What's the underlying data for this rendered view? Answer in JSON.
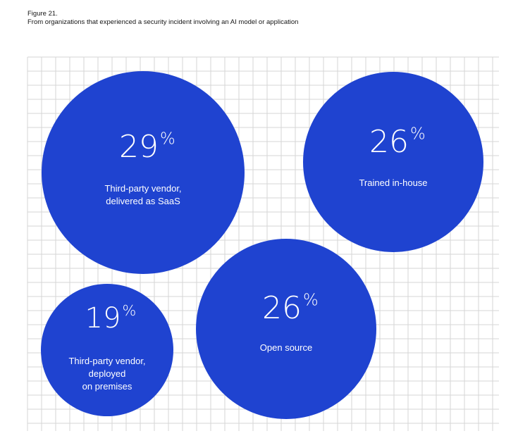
{
  "figure": {
    "number": "Figure 21.",
    "subtitle": "From organizations that experienced a security incident involving an AI model or application"
  },
  "colors": {
    "bubble": "#1f43d0",
    "grid": "#d6d6d6",
    "text": "#ffffff"
  },
  "chart_data": {
    "type": "bubble",
    "grid": true,
    "unit": "%",
    "series": [
      {
        "value": 29,
        "label": "Third-party vendor, delivered as SaaS",
        "label_lines": [
          "Third-party vendor,",
          "delivered as SaaS"
        ]
      },
      {
        "value": 26,
        "label": "Trained in-house",
        "label_lines": [
          "Trained in-house"
        ]
      },
      {
        "value": 19,
        "label": "Third-party vendor, deployed on premises",
        "label_lines": [
          "Third-party vendor,",
          "deployed",
          "on premises"
        ]
      },
      {
        "value": 26,
        "label": "Open source",
        "label_lines": [
          "Open source"
        ]
      }
    ]
  }
}
